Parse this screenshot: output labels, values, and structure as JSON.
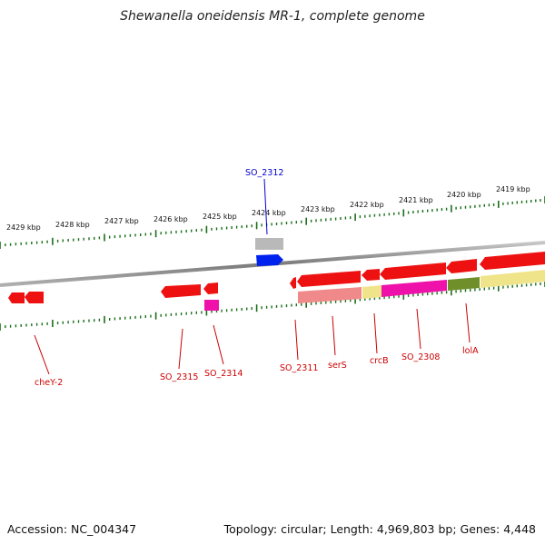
{
  "title": "Shewanella oneidensis MR-1, complete genome",
  "footer": {
    "accession": "Accession: NC_004347",
    "topology": "Topology: circular; Length: 4,969,803 bp; Genes: 4,448"
  },
  "scale": {
    "unit": "kbp",
    "labels": [
      "2429 kbp",
      "2428 kbp",
      "2427 kbp",
      "2426 kbp",
      "2425 kbp",
      "2424 kbp",
      "2423 kbp",
      "2422 kbp",
      "2421 kbp",
      "2420 kbp",
      "2419 kbp"
    ]
  },
  "genes": [
    {
      "label": "SO_2312",
      "color": "#0000cc"
    },
    {
      "label": "cheY-2",
      "color": "#cc0000"
    },
    {
      "label": "SO_2315",
      "color": "#cc0000"
    },
    {
      "label": "SO_2314",
      "color": "#cc0000"
    },
    {
      "label": "SO_2311",
      "color": "#cc0000"
    },
    {
      "label": "serS",
      "color": "#cc0000"
    },
    {
      "label": "crcB",
      "color": "#cc0000"
    },
    {
      "label": "SO_2308",
      "color": "#cc0000"
    },
    {
      "label": "lolA",
      "color": "#cc0000"
    }
  ],
  "colors": {
    "cds": "#ee1111",
    "forward": "#0022ee",
    "backbone": "#8a8a8a",
    "ticks": "#1a6e1a",
    "gray_feature": "#b9b9b9",
    "salmon": "#f08a8a",
    "magenta": "#ee11aa",
    "khaki": "#f0e48a",
    "olive": "#6f8f2a"
  }
}
